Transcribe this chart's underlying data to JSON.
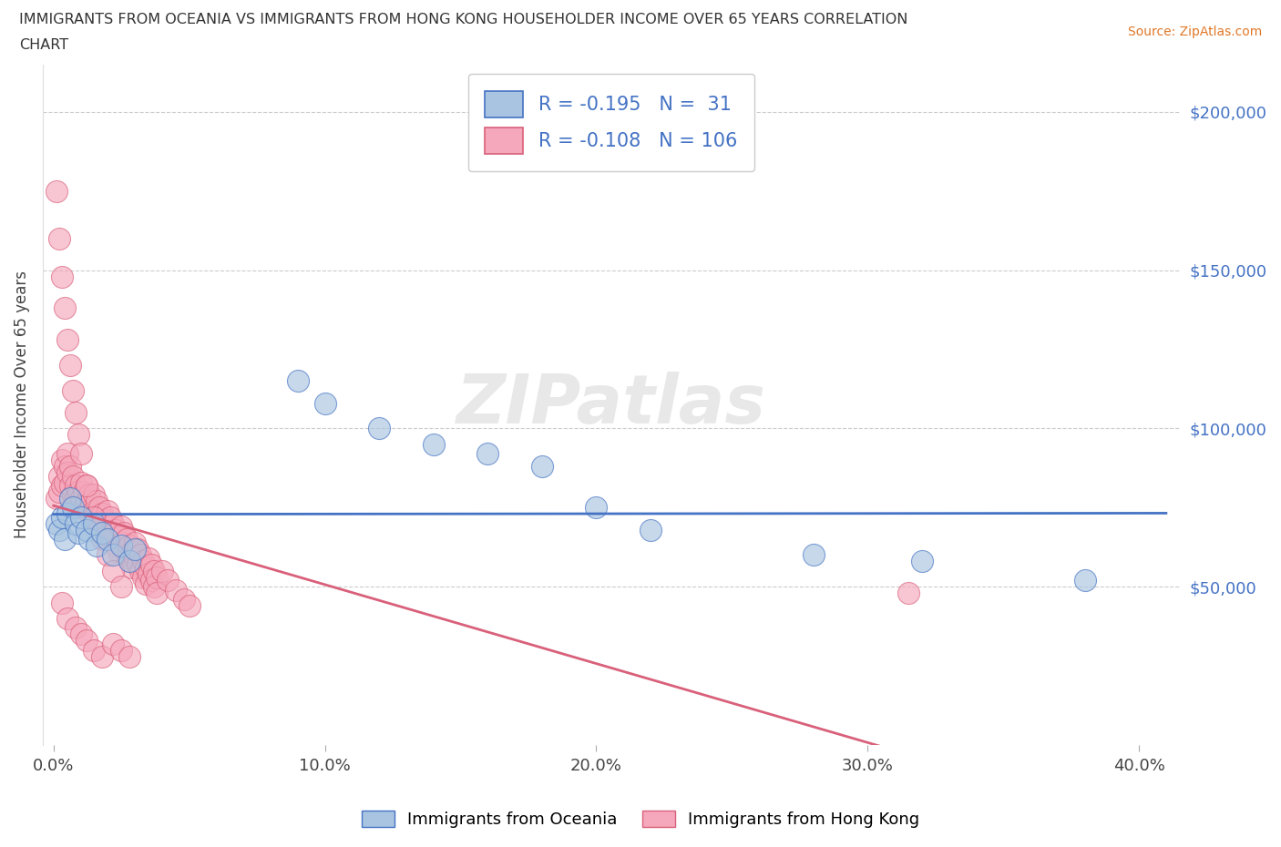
{
  "title_line1": "IMMIGRANTS FROM OCEANIA VS IMMIGRANTS FROM HONG KONG HOUSEHOLDER INCOME OVER 65 YEARS CORRELATION",
  "title_line2": "CHART",
  "source": "Source: ZipAtlas.com",
  "ylabel": "Householder Income Over 65 years",
  "xlabel_ticks": [
    "0.0%",
    "10.0%",
    "20.0%",
    "30.0%",
    "40.0%"
  ],
  "ytick_values": [
    50000,
    100000,
    150000,
    200000
  ],
  "xlim": [
    -0.004,
    0.415
  ],
  "ylim": [
    0,
    215000
  ],
  "legend_label1": "Immigrants from Oceania",
  "legend_label2": "Immigrants from Hong Kong",
  "R1": -0.195,
  "N1": 31,
  "R2": -0.108,
  "N2": 106,
  "color_blue": "#a8c4e0",
  "color_pink": "#f5a8bc",
  "line_color_blue": "#4472c4",
  "line_color_pink": "#d9607a",
  "watermark": "ZIPatlas",
  "oceania_x": [
    0.001,
    0.002,
    0.003,
    0.004,
    0.005,
    0.006,
    0.007,
    0.008,
    0.009,
    0.01,
    0.012,
    0.013,
    0.015,
    0.016,
    0.018,
    0.02,
    0.022,
    0.025,
    0.028,
    0.03,
    0.09,
    0.1,
    0.12,
    0.14,
    0.16,
    0.18,
    0.2,
    0.22,
    0.28,
    0.32,
    0.38
  ],
  "oceania_y": [
    70000,
    68000,
    72000,
    65000,
    73000,
    78000,
    75000,
    70000,
    67000,
    72000,
    68000,
    65000,
    70000,
    63000,
    67000,
    65000,
    60000,
    63000,
    58000,
    62000,
    115000,
    108000,
    100000,
    95000,
    92000,
    88000,
    75000,
    68000,
    60000,
    58000,
    52000
  ],
  "hongkong_x": [
    0.001,
    0.002,
    0.002,
    0.003,
    0.003,
    0.004,
    0.004,
    0.005,
    0.005,
    0.006,
    0.006,
    0.007,
    0.007,
    0.008,
    0.008,
    0.009,
    0.009,
    0.01,
    0.01,
    0.011,
    0.011,
    0.012,
    0.012,
    0.013,
    0.013,
    0.014,
    0.014,
    0.015,
    0.015,
    0.016,
    0.016,
    0.017,
    0.017,
    0.018,
    0.018,
    0.019,
    0.019,
    0.02,
    0.02,
    0.021,
    0.021,
    0.022,
    0.022,
    0.023,
    0.023,
    0.024,
    0.024,
    0.025,
    0.025,
    0.026,
    0.026,
    0.027,
    0.027,
    0.028,
    0.028,
    0.029,
    0.029,
    0.03,
    0.03,
    0.031,
    0.031,
    0.032,
    0.032,
    0.033,
    0.033,
    0.034,
    0.034,
    0.035,
    0.035,
    0.036,
    0.036,
    0.037,
    0.037,
    0.038,
    0.038,
    0.04,
    0.042,
    0.045,
    0.048,
    0.05,
    0.001,
    0.002,
    0.003,
    0.004,
    0.005,
    0.006,
    0.007,
    0.008,
    0.009,
    0.01,
    0.012,
    0.015,
    0.018,
    0.02,
    0.022,
    0.025,
    0.003,
    0.005,
    0.008,
    0.01,
    0.012,
    0.015,
    0.018,
    0.022,
    0.025,
    0.028,
    0.315
  ],
  "hongkong_y": [
    78000,
    85000,
    80000,
    90000,
    82000,
    88000,
    83000,
    92000,
    86000,
    88000,
    82000,
    85000,
    79000,
    82000,
    78000,
    80000,
    75000,
    83000,
    78000,
    80000,
    75000,
    82000,
    77000,
    79000,
    74000,
    77000,
    72000,
    79000,
    74000,
    77000,
    72000,
    75000,
    70000,
    73000,
    68000,
    71000,
    66000,
    74000,
    69000,
    72000,
    67000,
    70000,
    65000,
    68000,
    63000,
    66000,
    61000,
    69000,
    64000,
    67000,
    62000,
    65000,
    60000,
    63000,
    58000,
    61000,
    56000,
    64000,
    59000,
    62000,
    57000,
    60000,
    55000,
    58000,
    53000,
    56000,
    51000,
    59000,
    54000,
    57000,
    52000,
    55000,
    50000,
    53000,
    48000,
    55000,
    52000,
    49000,
    46000,
    44000,
    175000,
    160000,
    148000,
    138000,
    128000,
    120000,
    112000,
    105000,
    98000,
    92000,
    82000,
    72000,
    65000,
    60000,
    55000,
    50000,
    45000,
    40000,
    37000,
    35000,
    33000,
    30000,
    28000,
    32000,
    30000,
    28000,
    48000
  ]
}
